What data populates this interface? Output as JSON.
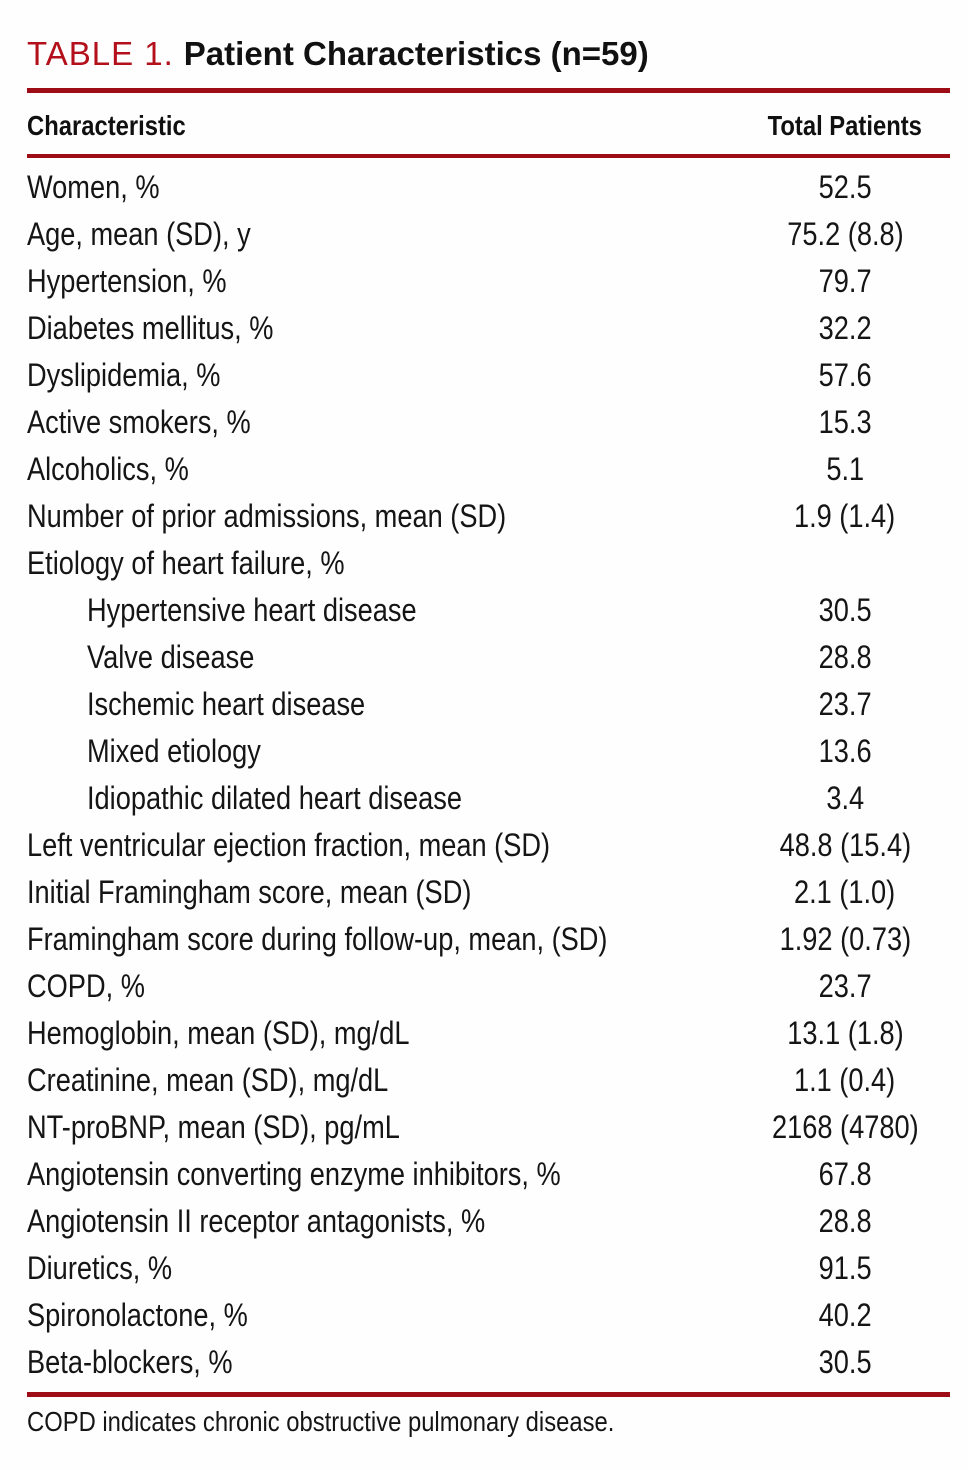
{
  "caption": {
    "label": "TABLE 1.",
    "title": "Patient Characteristics (n=59)"
  },
  "table": {
    "columns": [
      "Characteristic",
      "Total Patients"
    ],
    "rows": [
      {
        "label": "Women, %",
        "value": "52.5",
        "indent": false
      },
      {
        "label": "Age, mean (SD), y",
        "value": "75.2 (8.8)",
        "indent": false
      },
      {
        "label": "Hypertension, %",
        "value": "79.7",
        "indent": false
      },
      {
        "label": "Diabetes mellitus, %",
        "value": "32.2",
        "indent": false
      },
      {
        "label": "Dyslipidemia, %",
        "value": "57.6",
        "indent": false
      },
      {
        "label": "Active smokers, %",
        "value": "15.3",
        "indent": false
      },
      {
        "label": "Alcoholics, %",
        "value": "5.1",
        "indent": false
      },
      {
        "label": "Number of prior admissions, mean (SD)",
        "value": "1.9 (1.4)",
        "indent": false
      },
      {
        "label": "Etiology of heart failure, %",
        "value": "",
        "indent": false
      },
      {
        "label": "Hypertensive heart disease",
        "value": "30.5",
        "indent": true
      },
      {
        "label": "Valve disease",
        "value": "28.8",
        "indent": true
      },
      {
        "label": "Ischemic heart disease",
        "value": "23.7",
        "indent": true
      },
      {
        "label": "Mixed etiology",
        "value": "13.6",
        "indent": true
      },
      {
        "label": "Idiopathic dilated heart disease",
        "value": "3.4",
        "indent": true
      },
      {
        "label": "Left ventricular ejection fraction, mean (SD)",
        "value": "48.8 (15.4)",
        "indent": false
      },
      {
        "label": "Initial Framingham score, mean (SD)",
        "value": "2.1 (1.0)",
        "indent": false
      },
      {
        "label": "Framingham score during follow-up, mean, (SD)",
        "value": "1.92 (0.73)",
        "indent": false
      },
      {
        "label": "COPD, %",
        "value": "23.7",
        "indent": false
      },
      {
        "label": "Hemoglobin, mean (SD), mg/dL",
        "value": "13.1 (1.8)",
        "indent": false
      },
      {
        "label": "Creatinine, mean (SD), mg/dL",
        "value": "1.1 (0.4)",
        "indent": false
      },
      {
        "label": "NT-proBNP, mean (SD), pg/mL",
        "value": "2168 (4780)",
        "indent": false
      },
      {
        "label": "Angiotensin converting enzyme inhibitors, %",
        "value": "67.8",
        "indent": false
      },
      {
        "label": "Angiotensin II receptor antagonists, %",
        "value": "28.8",
        "indent": false
      },
      {
        "label": "Diuretics, %",
        "value": "91.5",
        "indent": false
      },
      {
        "label": "Spironolactone, %",
        "value": "40.2",
        "indent": false
      },
      {
        "label": "Beta-blockers, %",
        "value": "30.5",
        "indent": false
      }
    ]
  },
  "footnote": "COPD indicates chronic obstructive pulmonary disease.",
  "colors": {
    "accent_red": "#b3101b",
    "rule_red": "#9e0d15",
    "text_black": "#151515"
  }
}
